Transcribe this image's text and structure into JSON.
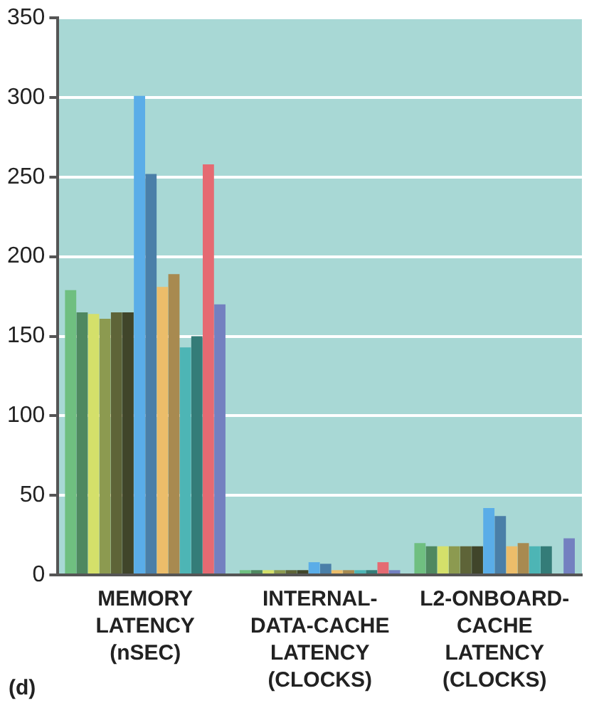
{
  "chart_data": {
    "type": "bar",
    "categories": [
      "MEMORY\nLATENCY\n(nSEC)",
      "INTERNAL-\nDATA-CACHE\nLATENCY\n(CLOCKS)",
      "L2-ONBOARD-\nCACHE\nLATENCY\n(CLOCKS)"
    ],
    "series": [
      {
        "color": "#6fbf80",
        "values": [
          179,
          3,
          20
        ]
      },
      {
        "color": "#4f8860",
        "values": [
          165,
          3,
          18
        ]
      },
      {
        "color": "#d4e06a",
        "values": [
          164,
          3,
          18
        ]
      },
      {
        "color": "#8c9a50",
        "values": [
          161,
          3,
          18
        ]
      },
      {
        "color": "#5e6438",
        "values": [
          165,
          3,
          18
        ]
      },
      {
        "color": "#40452a",
        "values": [
          165,
          3,
          18
        ]
      },
      {
        "color": "#5aade8",
        "values": [
          301,
          8,
          42
        ]
      },
      {
        "color": "#4a7fa8",
        "values": [
          252,
          7,
          37
        ]
      },
      {
        "color": "#ecbd6a",
        "values": [
          181,
          3,
          18
        ]
      },
      {
        "color": "#a88a50",
        "values": [
          189,
          3,
          20
        ]
      },
      {
        "color": "#4db5b5",
        "values": [
          143,
          3,
          18
        ]
      },
      {
        "color": "#347c78",
        "values": [
          150,
          3,
          18
        ]
      },
      {
        "color": "#e56a72",
        "values": [
          258,
          8,
          null
        ]
      },
      {
        "color": "#7380c0",
        "values": [
          170,
          3,
          23
        ]
      }
    ],
    "ylim": [
      0,
      350
    ],
    "yticks": [
      0,
      50,
      100,
      150,
      200,
      250,
      300,
      350
    ],
    "grid": "y",
    "legend": false,
    "annotations": [
      "(d)"
    ]
  }
}
